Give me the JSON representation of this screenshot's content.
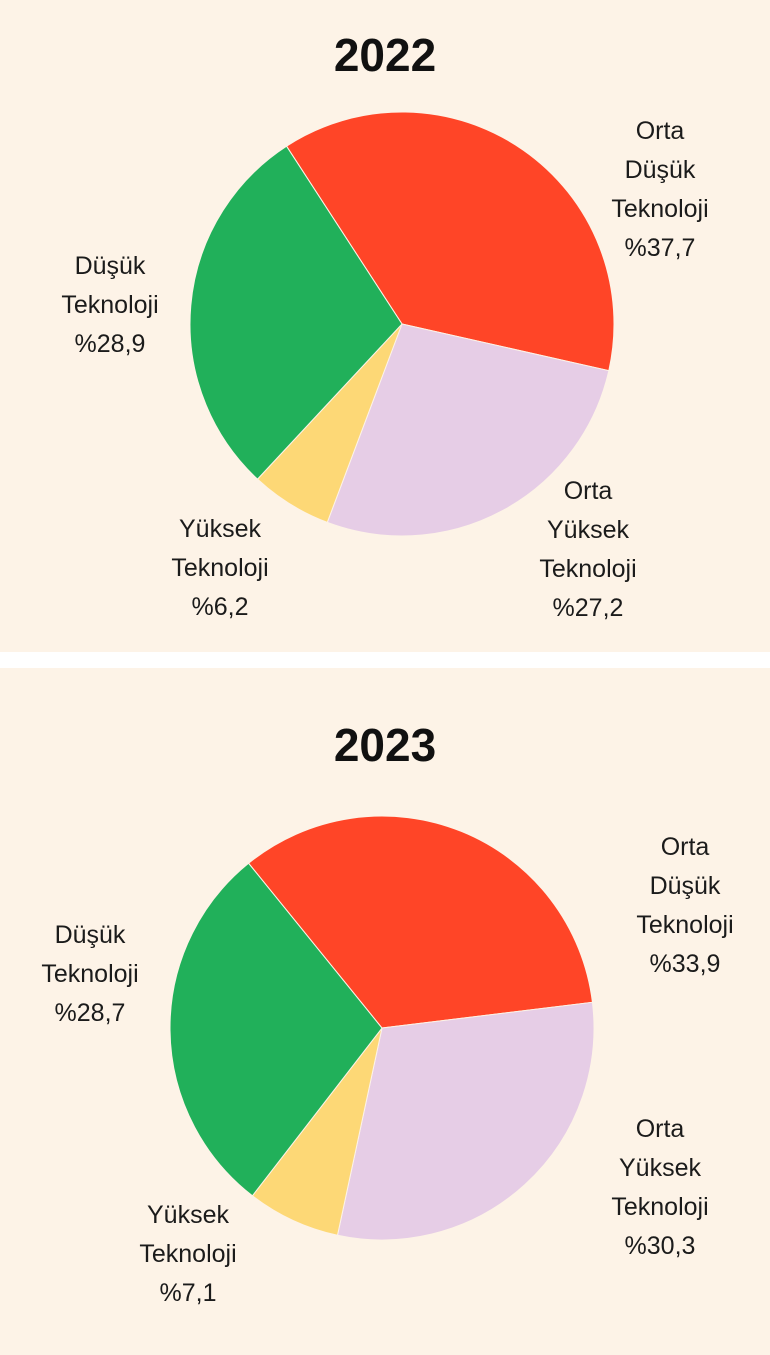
{
  "chart_data": [
    {
      "type": "pie",
      "title": "2022",
      "slices": [
        {
          "label_lines": [
            "Orta",
            "Düşük",
            "Teknoloji"
          ],
          "value_text": "%37,7",
          "value": 37.7,
          "color": "#ff4527"
        },
        {
          "label_lines": [
            "Orta",
            "Yüksek",
            "Teknoloji"
          ],
          "value_text": "%27,2",
          "value": 27.2,
          "color": "#e6cde6"
        },
        {
          "label_lines": [
            "Yüksek",
            "Teknoloji"
          ],
          "value_text": "%6,2",
          "value": 6.2,
          "color": "#fdd876"
        },
        {
          "label_lines": [
            "Düşük",
            "Teknoloji"
          ],
          "value_text": "%28,9",
          "value": 28.9,
          "color": "#21b05a"
        }
      ]
    },
    {
      "type": "pie",
      "title": "2023",
      "slices": [
        {
          "label_lines": [
            "Orta",
            "Düşük",
            "Teknoloji"
          ],
          "value_text": "%33,9",
          "value": 33.9,
          "color": "#ff4527"
        },
        {
          "label_lines": [
            "Orta",
            "Yüksek",
            "Teknoloji"
          ],
          "value_text": "%30,3",
          "value": 30.3,
          "color": "#e6cde6"
        },
        {
          "label_lines": [
            "Yüksek",
            "Teknoloji"
          ],
          "value_text": "%7,1",
          "value": 7.1,
          "color": "#fdd876"
        },
        {
          "label_lines": [
            "Düşük",
            "Teknoloji"
          ],
          "value_text": "%28,7",
          "value": 28.7,
          "color": "#21b05a"
        }
      ]
    }
  ]
}
